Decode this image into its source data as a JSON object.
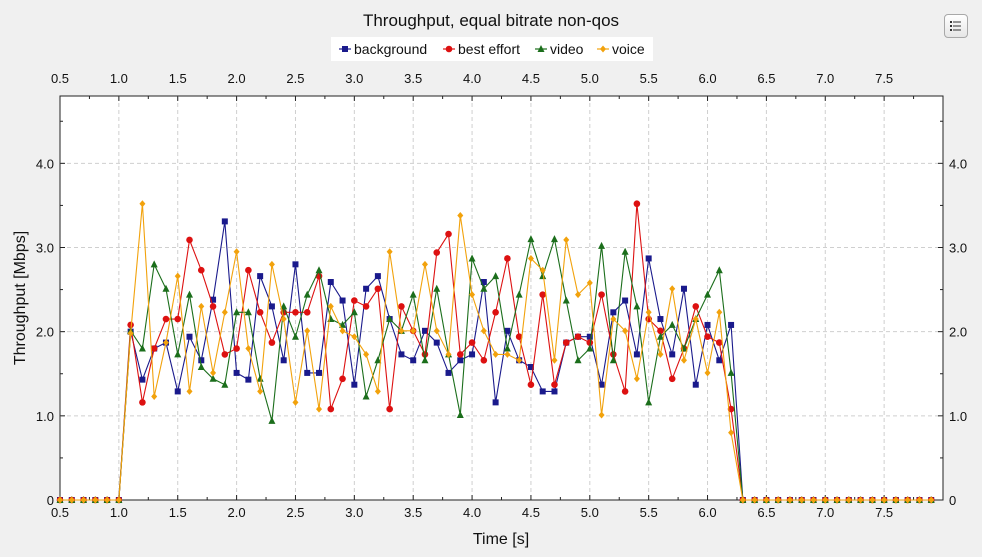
{
  "chart_data": {
    "type": "line",
    "title": "Throughput, equal bitrate non-qos",
    "xlabel": "Time [s]",
    "ylabel": "Throughput [Mbps]",
    "xlim": [
      0.5,
      8.0
    ],
    "ylim": [
      0,
      4.8
    ],
    "x_ticks": [
      "0.5",
      "1.0",
      "1.5",
      "2.0",
      "2.5",
      "3.0",
      "3.5",
      "4.0",
      "4.5",
      "5.0",
      "5.5",
      "6.0",
      "6.5",
      "7.0",
      "7.5"
    ],
    "y_ticks": [
      "0",
      "1.0",
      "2.0",
      "3.0",
      "4.0"
    ],
    "grid": true,
    "legend": "top-center",
    "x": [
      0.5,
      0.6,
      0.7,
      0.8,
      0.9,
      1.0,
      1.1,
      1.2,
      1.3,
      1.4,
      1.5,
      1.6,
      1.7,
      1.8,
      1.9,
      2.0,
      2.1,
      2.2,
      2.3,
      2.4,
      2.5,
      2.6,
      2.7,
      2.8,
      2.9,
      3.0,
      3.1,
      3.2,
      3.3,
      3.4,
      3.5,
      3.6,
      3.7,
      3.8,
      3.9,
      4.0,
      4.1,
      4.2,
      4.3,
      4.4,
      4.5,
      4.6,
      4.7,
      4.8,
      4.9,
      5.0,
      5.1,
      5.2,
      5.3,
      5.4,
      5.5,
      5.6,
      5.7,
      5.8,
      5.9,
      6.0,
      6.1,
      6.2,
      6.3,
      6.4,
      6.5,
      6.6,
      6.7,
      6.8,
      6.9,
      7.0,
      7.1,
      7.2,
      7.3,
      7.4,
      7.5,
      7.6,
      7.7,
      7.8,
      7.9
    ],
    "series": [
      {
        "name": "background",
        "color": "#1a1a8c",
        "marker": "square",
        "values": [
          0,
          0,
          0,
          0,
          0,
          0,
          2.0,
          1.43,
          1.8,
          1.87,
          1.29,
          1.94,
          1.66,
          2.38,
          3.31,
          1.51,
          1.43,
          2.66,
          2.3,
          1.66,
          2.8,
          1.51,
          1.51,
          2.59,
          2.37,
          1.37,
          2.51,
          2.66,
          2.15,
          1.73,
          1.66,
          2.01,
          1.87,
          1.51,
          1.66,
          1.73,
          2.59,
          1.16,
          2.01,
          1.66,
          1.58,
          1.29,
          1.29,
          1.87,
          1.94,
          1.94,
          1.37,
          2.23,
          2.37,
          1.73,
          2.87,
          2.15,
          1.73,
          2.51,
          1.37,
          2.08,
          1.66,
          2.08,
          0,
          0,
          0,
          0,
          0,
          0,
          0,
          0,
          0,
          0,
          0,
          0,
          0,
          0,
          0,
          0,
          0
        ]
      },
      {
        "name": "best effort",
        "color": "#dd1111",
        "marker": "circle",
        "values": [
          0,
          0,
          0,
          0,
          0,
          0,
          2.08,
          1.16,
          1.8,
          2.15,
          2.15,
          3.09,
          2.73,
          2.3,
          1.73,
          1.8,
          2.73,
          2.23,
          1.87,
          2.23,
          2.23,
          2.23,
          2.66,
          1.08,
          1.44,
          2.37,
          2.3,
          2.51,
          1.08,
          2.3,
          2.01,
          1.73,
          2.94,
          3.16,
          1.73,
          1.87,
          1.66,
          2.23,
          2.87,
          1.94,
          1.37,
          2.44,
          1.37,
          1.87,
          1.94,
          1.87,
          2.44,
          1.73,
          1.29,
          3.52,
          2.15,
          2.01,
          1.44,
          1.8,
          2.3,
          1.94,
          1.87,
          1.08,
          0,
          0,
          0,
          0,
          0,
          0,
          0,
          0,
          0,
          0,
          0,
          0,
          0,
          0,
          0,
          0,
          0
        ]
      },
      {
        "name": "video",
        "color": "#1b6e1b",
        "marker": "triangle",
        "values": [
          0,
          0,
          0,
          0,
          0,
          0,
          2.01,
          1.8,
          2.8,
          2.51,
          1.73,
          2.44,
          1.58,
          1.44,
          1.37,
          2.23,
          2.23,
          1.44,
          0.94,
          2.3,
          1.94,
          2.44,
          2.73,
          2.15,
          2.08,
          2.23,
          1.23,
          1.66,
          2.15,
          2.01,
          2.44,
          1.66,
          2.51,
          1.73,
          1.01,
          2.87,
          2.51,
          2.66,
          1.8,
          2.44,
          3.1,
          2.66,
          3.1,
          2.37,
          1.66,
          1.8,
          3.02,
          1.66,
          2.95,
          2.3,
          1.16,
          1.94,
          2.08,
          1.8,
          2.15,
          2.44,
          2.73,
          1.51,
          0,
          0,
          0,
          0,
          0,
          0,
          0,
          0,
          0,
          0,
          0,
          0,
          0,
          0,
          0,
          0,
          0
        ]
      },
      {
        "name": "voice",
        "color": "#f2a20c",
        "marker": "diamond",
        "values": [
          0,
          0,
          0,
          0,
          0,
          0,
          1.98,
          3.52,
          1.23,
          1.87,
          2.66,
          1.29,
          2.3,
          1.51,
          2.23,
          2.95,
          1.8,
          1.29,
          2.8,
          2.15,
          1.16,
          2.01,
          1.08,
          2.3,
          2.01,
          1.94,
          1.73,
          1.29,
          2.95,
          2.01,
          2.01,
          2.8,
          2.01,
          1.73,
          3.38,
          2.44,
          2.01,
          1.73,
          1.73,
          1.66,
          2.87,
          2.73,
          1.66,
          3.09,
          2.44,
          2.58,
          1.01,
          2.15,
          2.01,
          1.44,
          2.23,
          1.73,
          2.51,
          1.66,
          2.15,
          1.51,
          2.23,
          0.8,
          0,
          0,
          0,
          0,
          0,
          0,
          0,
          0,
          0,
          0,
          0,
          0,
          0,
          0,
          0,
          0,
          0
        ]
      }
    ]
  },
  "toolbar": {
    "menu_icon": "list-menu-icon"
  }
}
